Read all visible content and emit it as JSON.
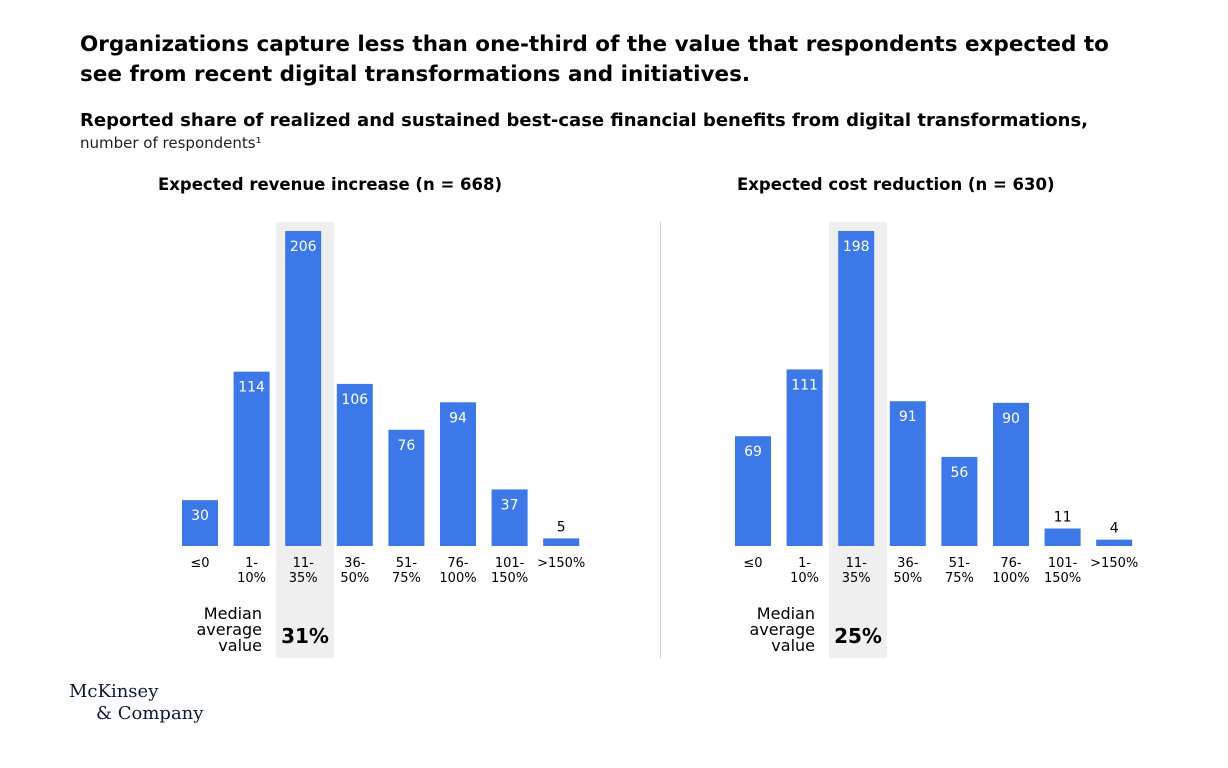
{
  "title": "Organizations capture less than one-third of the value that respondents expected to see from recent digital transformations and initiatives.",
  "subtitle": "Reported share of realized and sustained best-case financial benefits from digital transformations,",
  "subtitle_note": "number of respondents¹",
  "median_label": [
    "Median",
    "average",
    "value"
  ],
  "logo": {
    "line1": "McKinsey",
    "line2": "& Company"
  },
  "colors": {
    "bar": "#3c78e8",
    "highlight": "#efefef",
    "divider": "#cfcfcf"
  },
  "chart_data": [
    {
      "type": "bar",
      "title": "Expected revenue increase (n = 668)",
      "categories": [
        [
          "≤0"
        ],
        [
          "1-",
          "10%"
        ],
        [
          "11-",
          "35%"
        ],
        [
          "36-",
          "50%"
        ],
        [
          "51-",
          "75%"
        ],
        [
          "76-",
          "100%"
        ],
        [
          "101-",
          "150%"
        ],
        [
          ">150%"
        ]
      ],
      "values": [
        30,
        114,
        206,
        106,
        76,
        94,
        37,
        5
      ],
      "highlight_index": 2,
      "median": "31%",
      "ylim": [
        0,
        206
      ]
    },
    {
      "type": "bar",
      "title": "Expected cost reduction (n = 630)",
      "categories": [
        [
          "≤0"
        ],
        [
          "1-",
          "10%"
        ],
        [
          "11-",
          "35%"
        ],
        [
          "36-",
          "50%"
        ],
        [
          "51-",
          "75%"
        ],
        [
          "76-",
          "100%"
        ],
        [
          "101-",
          "150%"
        ],
        [
          ">150%"
        ]
      ],
      "values": [
        69,
        111,
        198,
        91,
        56,
        90,
        11,
        4
      ],
      "highlight_index": 2,
      "median": "25%",
      "ylim": [
        0,
        198
      ]
    }
  ]
}
